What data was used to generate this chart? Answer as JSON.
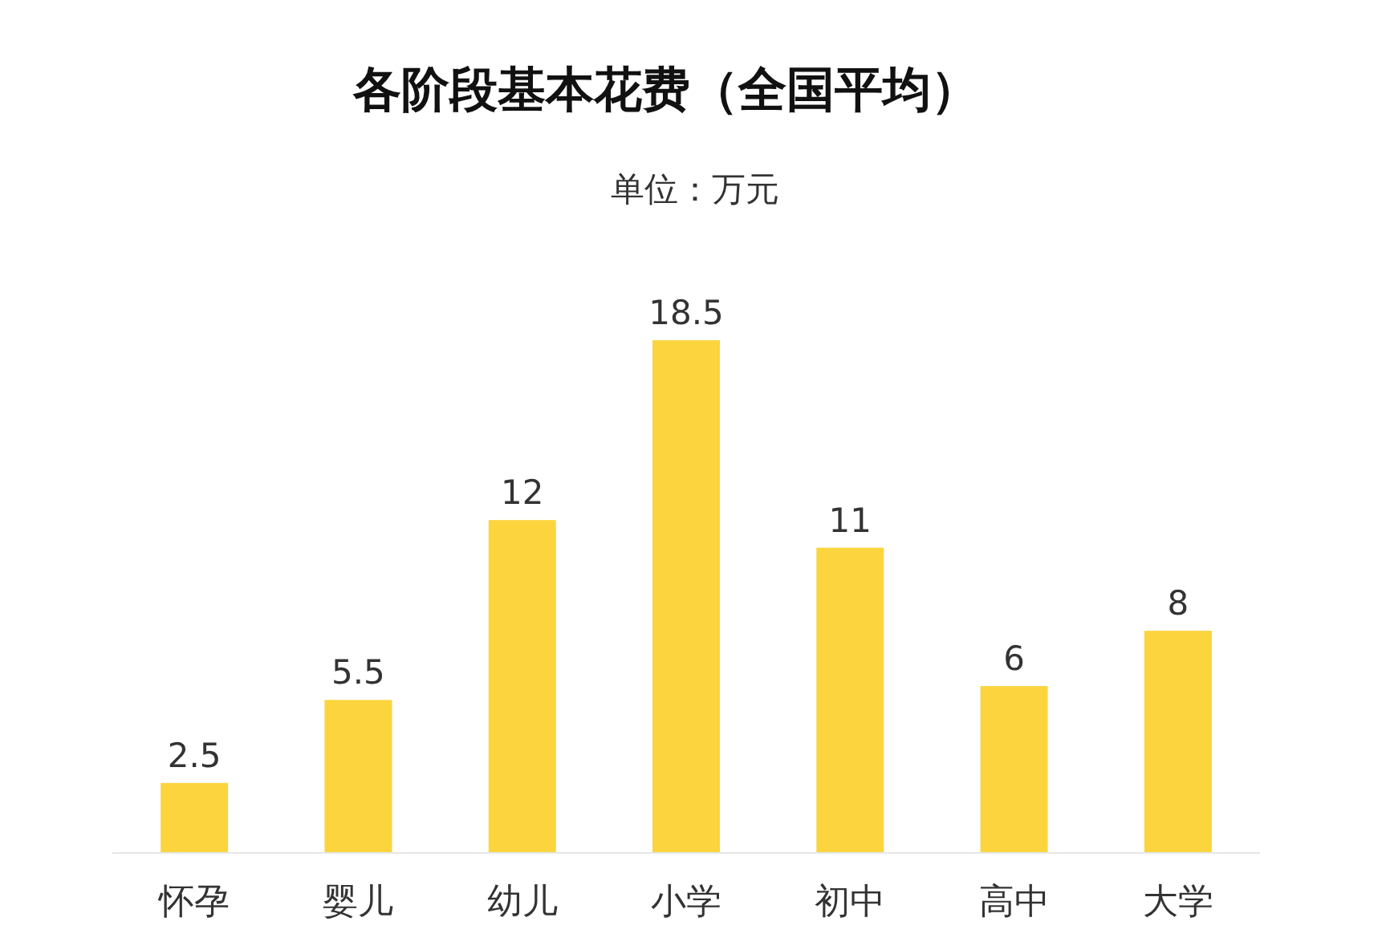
{
  "chart_data": {
    "type": "bar",
    "title": "各阶段基本花费（全国平均）",
    "subtitle": "单位：万元",
    "categories": [
      "怀孕",
      "婴儿",
      "幼儿",
      "小学",
      "初中",
      "高中",
      "大学"
    ],
    "values": [
      2.5,
      5.5,
      12,
      18.5,
      11,
      6,
      8
    ],
    "color": "#fcd43e",
    "data_labels": true
  }
}
